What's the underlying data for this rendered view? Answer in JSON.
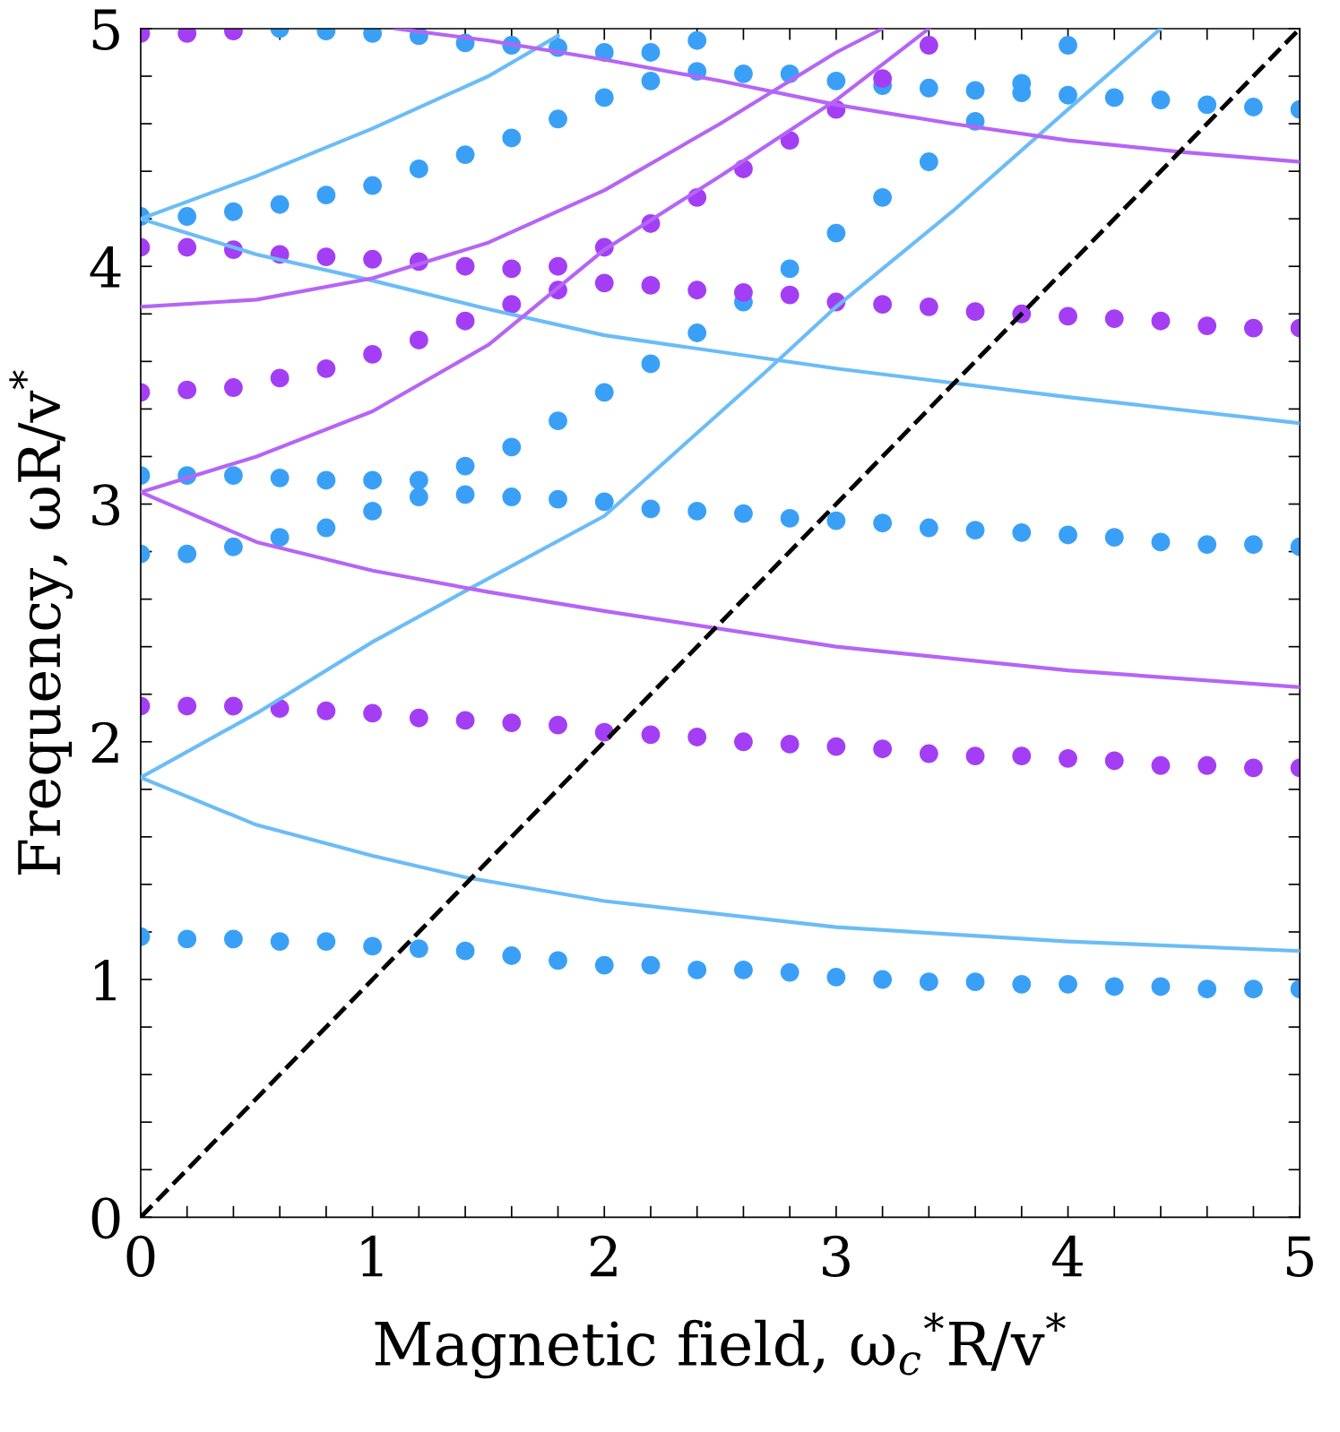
{
  "chart_data": {
    "type": "scatter",
    "xlabel": "Magnetic field, ω$_{c}$$^{*}$R/v$^{*}$",
    "ylabel": "Frequency, ωR/v$^{*}$",
    "xlim": [
      0,
      5
    ],
    "ylim": [
      0,
      5
    ],
    "xticks": [
      0,
      1,
      2,
      3,
      4,
      5
    ],
    "yticks": [
      0,
      1,
      2,
      3,
      4,
      5
    ],
    "grid": false,
    "legend": false,
    "series": [
      {
        "type": "line",
        "color": "#6bbcf7",
        "x": [
          0,
          0.5,
          1,
          1.4,
          2,
          3,
          4,
          5
        ],
        "values": [
          1.85,
          1.65,
          1.52,
          1.43,
          1.33,
          1.22,
          1.16,
          1.12
        ]
      },
      {
        "type": "line",
        "color": "#6bbcf7",
        "x": [
          0,
          0.5,
          1,
          1.43,
          2,
          2.7,
          3,
          3.5,
          4,
          4.4
        ],
        "values": [
          1.85,
          2.12,
          2.42,
          2.65,
          2.95,
          3.56,
          3.83,
          4.23,
          4.66,
          5.0
        ]
      },
      {
        "type": "line",
        "color": "#6bbcf7",
        "x": [
          0,
          0.5,
          1,
          1.5,
          2,
          3,
          4,
          5
        ],
        "values": [
          4.2,
          4.05,
          3.94,
          3.82,
          3.71,
          3.57,
          3.45,
          3.34
        ]
      },
      {
        "type": "line",
        "color": "#6bbcf7",
        "x": [
          0,
          0.5,
          1,
          1.5,
          1.8
        ],
        "values": [
          4.2,
          4.38,
          4.58,
          4.8,
          4.97
        ]
      },
      {
        "type": "line",
        "color": "#b565f5",
        "x": [
          0,
          0.5,
          1,
          1.5,
          2,
          3,
          4,
          5
        ],
        "values": [
          3.05,
          2.84,
          2.72,
          2.63,
          2.55,
          2.4,
          2.3,
          2.23
        ]
      },
      {
        "type": "line",
        "color": "#b565f5",
        "x": [
          0,
          0.5,
          1,
          1.5,
          2,
          2.5,
          3,
          3.4
        ],
        "values": [
          3.05,
          3.2,
          3.39,
          3.67,
          4.07,
          4.38,
          4.7,
          5.0
        ]
      },
      {
        "type": "line",
        "color": "#b565f5",
        "x": [
          0,
          0.5,
          1,
          1.5,
          2,
          2.5,
          3,
          3.2
        ],
        "values": [
          3.83,
          3.86,
          3.95,
          4.1,
          4.32,
          4.6,
          4.9,
          5.0
        ]
      },
      {
        "type": "line",
        "color": "#b565f5",
        "x": [
          1.1,
          1.5,
          2,
          2.5,
          3,
          3.5,
          4,
          4.5,
          5
        ],
        "values": [
          5.0,
          4.95,
          4.87,
          4.78,
          4.68,
          4.6,
          4.53,
          4.48,
          4.44
        ]
      },
      {
        "marker": "circle",
        "color": "#3aa0f7",
        "x": [
          0,
          0.2,
          0.4,
          0.6,
          0.8,
          1,
          1.2,
          1.4,
          1.6,
          1.8,
          2,
          2.2,
          2.4,
          2.6,
          2.8,
          3,
          3.2,
          3.4,
          3.6,
          3.8,
          4,
          4.2,
          4.4,
          4.6,
          4.8,
          5,
          0,
          0.2,
          0.4,
          0.6,
          0.8,
          1,
          1.2,
          1.4,
          1.6,
          1.8,
          2,
          2.2,
          2.4,
          2.6,
          2.8,
          3,
          3.2,
          3.4,
          3.6,
          3.8,
          4,
          4.2,
          4.4,
          4.6,
          4.8,
          5,
          0,
          0.2,
          0.4,
          0.6,
          0.8,
          1,
          1.2,
          1.4,
          1.6,
          1.8,
          2,
          2.2,
          2.4,
          2.6,
          2.8,
          3,
          3.2,
          3.4,
          3.6,
          3.8,
          4,
          0,
          0.2,
          0.4,
          0.6,
          0.8,
          1,
          1.2,
          1.4,
          1.6,
          1.8,
          2,
          2.2,
          2.4,
          2.6,
          2.8,
          3,
          3.2,
          3.4,
          3.6,
          3.8,
          4,
          4.2,
          4.4,
          4.6,
          4.8,
          5,
          0.6,
          0.8,
          1,
          1.2,
          1.4,
          1.6,
          1.8,
          2,
          2.2,
          2.4
        ],
        "values": [
          1.18,
          1.17,
          1.17,
          1.16,
          1.16,
          1.14,
          1.13,
          1.12,
          1.1,
          1.08,
          1.06,
          1.06,
          1.04,
          1.04,
          1.03,
          1.01,
          1.0,
          0.99,
          0.99,
          0.98,
          0.98,
          0.97,
          0.97,
          0.96,
          0.96,
          0.96,
          2.79,
          2.79,
          2.82,
          2.86,
          2.9,
          2.97,
          3.03,
          3.04,
          3.03,
          3.02,
          3.01,
          2.98,
          2.97,
          2.96,
          2.94,
          2.93,
          2.92,
          2.9,
          2.89,
          2.88,
          2.87,
          2.86,
          2.84,
          2.83,
          2.83,
          2.82,
          3.12,
          3.12,
          3.12,
          3.11,
          3.1,
          3.1,
          3.1,
          3.16,
          3.24,
          3.35,
          3.47,
          3.59,
          3.72,
          3.85,
          3.99,
          4.14,
          4.29,
          4.44,
          4.61,
          4.77,
          4.93,
          4.21,
          4.21,
          4.23,
          4.26,
          4.3,
          4.34,
          4.41,
          4.47,
          4.54,
          4.62,
          4.71,
          4.78,
          4.82,
          4.81,
          4.81,
          4.78,
          4.76,
          4.75,
          4.74,
          4.73,
          4.72,
          4.71,
          4.7,
          4.68,
          4.67,
          4.66,
          5.0,
          4.99,
          4.98,
          4.97,
          4.94,
          4.93,
          4.92,
          4.9,
          4.9,
          4.95
        ]
      },
      {
        "marker": "circle",
        "color": "#a43ef5",
        "x": [
          0,
          0.2,
          0.4,
          0.6,
          0.8,
          1,
          1.2,
          1.4,
          1.6,
          1.8,
          2,
          2.2,
          2.4,
          2.6,
          2.8,
          3,
          3.2,
          3.4,
          3.6,
          3.8,
          4,
          4.2,
          4.4,
          4.6,
          4.8,
          5,
          0,
          0.2,
          0.4,
          0.6,
          0.8,
          1,
          1.2,
          1.4,
          1.6,
          1.8,
          2,
          2.2,
          2.4,
          2.6,
          2.8,
          3,
          3.2,
          3.4,
          3.6,
          3.8,
          4,
          4.2,
          4.4,
          4.6,
          4.8,
          5,
          0,
          0.2,
          0.4,
          0.6,
          0.8,
          1,
          1.2,
          1.4,
          1.6,
          1.8,
          2,
          2.2,
          2.4,
          2.6,
          2.8,
          3,
          3.2,
          3.4,
          0,
          0.2,
          0.4
        ],
        "values": [
          2.15,
          2.15,
          2.15,
          2.14,
          2.13,
          2.12,
          2.1,
          2.09,
          2.08,
          2.07,
          2.04,
          2.03,
          2.02,
          2.0,
          1.99,
          1.98,
          1.97,
          1.95,
          1.94,
          1.94,
          1.93,
          1.92,
          1.9,
          1.9,
          1.89,
          1.89,
          3.47,
          3.48,
          3.49,
          3.53,
          3.57,
          3.63,
          3.69,
          3.77,
          3.84,
          3.9,
          3.93,
          3.92,
          3.9,
          3.89,
          3.88,
          3.85,
          3.84,
          3.83,
          3.81,
          3.8,
          3.79,
          3.78,
          3.77,
          3.75,
          3.74,
          3.74,
          4.08,
          4.08,
          4.07,
          4.05,
          4.04,
          4.03,
          4.02,
          4.0,
          3.99,
          4.0,
          4.08,
          4.18,
          4.29,
          4.41,
          4.53,
          4.66,
          4.79,
          4.93,
          4.98,
          4.98,
          4.99
        ]
      },
      {
        "type": "line",
        "color": "#000000",
        "line_style": "dashed",
        "x": [
          0,
          5
        ],
        "values": [
          0,
          5
        ]
      }
    ]
  }
}
